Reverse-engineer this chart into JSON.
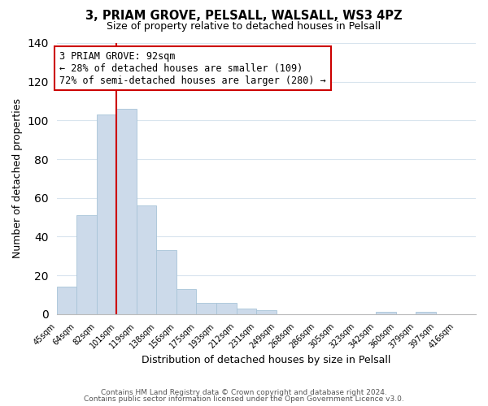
{
  "title": "3, PRIAM GROVE, PELSALL, WALSALL, WS3 4PZ",
  "subtitle": "Size of property relative to detached houses in Pelsall",
  "xlabel": "Distribution of detached houses by size in Pelsall",
  "ylabel": "Number of detached properties",
  "bar_color": "#ccdaea",
  "bar_edge_color": "#a8c4d8",
  "background_color": "#ffffff",
  "grid_color": "#d8e4ee",
  "tick_labels": [
    "45sqm",
    "64sqm",
    "82sqm",
    "101sqm",
    "119sqm",
    "138sqm",
    "156sqm",
    "175sqm",
    "193sqm",
    "212sqm",
    "231sqm",
    "249sqm",
    "268sqm",
    "286sqm",
    "305sqm",
    "323sqm",
    "342sqm",
    "360sqm",
    "379sqm",
    "397sqm",
    "416sqm"
  ],
  "bar_values": [
    14,
    51,
    103,
    106,
    56,
    33,
    13,
    6,
    6,
    3,
    2,
    0,
    0,
    0,
    0,
    0,
    1,
    0,
    1,
    0,
    0
  ],
  "ylim": [
    0,
    140
  ],
  "yticks": [
    0,
    20,
    40,
    60,
    80,
    100,
    120,
    140
  ],
  "property_line_x": 3.0,
  "property_line_color": "#cc0000",
  "annotation_title": "3 PRIAM GROVE: 92sqm",
  "annotation_line1": "← 28% of detached houses are smaller (109)",
  "annotation_line2": "72% of semi-detached houses are larger (280) →",
  "annotation_box_color": "#ffffff",
  "annotation_box_edge": "#cc0000",
  "footer1": "Contains HM Land Registry data © Crown copyright and database right 2024.",
  "footer2": "Contains public sector information licensed under the Open Government Licence v3.0."
}
